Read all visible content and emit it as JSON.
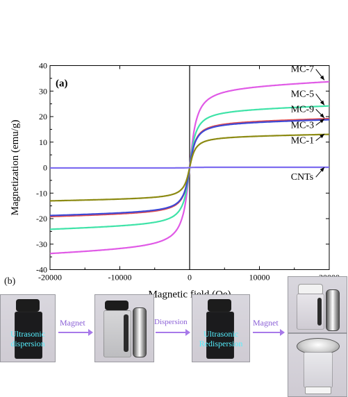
{
  "panel_a_label": "(a)",
  "panel_b_label": "(b)",
  "chart_data": {
    "type": "line",
    "xlabel": "Magnetic field (Oe)",
    "ylabel": "Magnetization (emu/g)",
    "xlim": [
      -20000,
      20000
    ],
    "ylim": [
      -40,
      40
    ],
    "xticks": [
      -20000,
      -10000,
      0,
      10000,
      20000
    ],
    "yticks": [
      -40,
      -30,
      -20,
      -10,
      0,
      10,
      20,
      30,
      40
    ],
    "xtick_labels": [
      "-20000",
      "-10000",
      "0",
      "10000",
      "20000"
    ],
    "ytick_labels": [
      "-40",
      "-30",
      "-20",
      "-10",
      "0",
      "10",
      "20",
      "30",
      "40"
    ],
    "grid": false,
    "series": [
      {
        "name": "MC-7",
        "ms": 34.5,
        "hk": 900,
        "color": "#e05ae6"
      },
      {
        "name": "MC-5",
        "ms": 24.7,
        "hk": 800,
        "color": "#3fe3a8"
      },
      {
        "name": "MC-9",
        "ms": 19.6,
        "hk": 800,
        "color": "#e24a4a"
      },
      {
        "name": "MC-3",
        "ms": 19.2,
        "hk": 800,
        "color": "#3d49d6"
      },
      {
        "name": "MC-1",
        "ms": 13.3,
        "hk": 750,
        "color": "#8c8a12"
      },
      {
        "name": "CNTs",
        "ms": 0.15,
        "hk": 500,
        "color": "#7d6cf0"
      }
    ],
    "annotations": [
      {
        "text": "MC-7",
        "series": "MC-7",
        "label_x": 14500,
        "label_y": 37.5,
        "x": 19300,
        "y": 34.3
      },
      {
        "text": "MC-5",
        "series": "MC-5",
        "label_x": 14500,
        "label_y": 27.8,
        "x": 19300,
        "y": 24.5
      },
      {
        "text": "MC-9",
        "series": "MC-9",
        "label_x": 14500,
        "label_y": 21.8,
        "x": 19300,
        "y": 19.5
      },
      {
        "text": "MC-3",
        "series": "MC-3",
        "label_x": 14500,
        "label_y": 15.5,
        "x": 19300,
        "y": 19.1
      },
      {
        "text": "MC-1",
        "series": "MC-1",
        "label_x": 14500,
        "label_y": 9.5,
        "x": 19300,
        "y": 13.2
      },
      {
        "text": "CNTs",
        "series": "CNTs",
        "label_x": 14500,
        "label_y": -4.8,
        "x": 19300,
        "y": 0.15
      }
    ]
  },
  "panel_b": {
    "steps": [
      "Magnet",
      "Dispersion",
      "Magnet"
    ],
    "vial_labels": [
      [
        "Ultrasonic",
        "dispersion"
      ],
      [
        "Ultrasonic",
        "Redispersion"
      ]
    ]
  }
}
